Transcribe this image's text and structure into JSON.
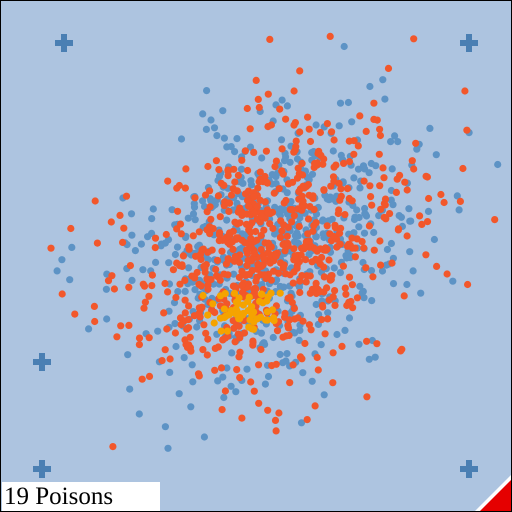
{
  "hud": {
    "status_text": "19 Poisons"
  },
  "colors": {
    "background": "#adc4e0",
    "marker": "#4a7fb3",
    "dot_red": "#f2572b",
    "dot_blue": "#5d93c5",
    "dot_orange": "#f5a300",
    "corner": "#e50000"
  },
  "markers": [
    {
      "name": "marker-top-left",
      "icon": "plus-icon"
    },
    {
      "name": "marker-top-right",
      "icon": "plus-icon"
    },
    {
      "name": "marker-mid-left",
      "icon": "plus-icon"
    },
    {
      "name": "marker-bottom-left",
      "icon": "plus-icon"
    },
    {
      "name": "marker-bottom-right",
      "icon": "plus-icon"
    }
  ],
  "corner_icon": "red-corner-triangle-icon"
}
